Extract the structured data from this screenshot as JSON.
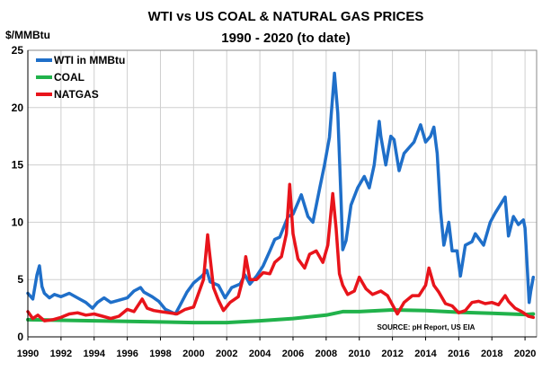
{
  "chart_data": {
    "type": "line",
    "title": "WTI vs US COAL & NATURAL GAS PRICES",
    "subtitle": "1990 - 2020 (to date)",
    "ylabel": "$/MMBtu",
    "xlabel": "",
    "ylim": [
      0,
      25
    ],
    "xlim": [
      1990,
      2020.7
    ],
    "yticks": [
      "0",
      "5",
      "10",
      "15",
      "20",
      "25"
    ],
    "xticks": [
      "1990",
      "1992",
      "1994",
      "1996",
      "1998",
      "2000",
      "2002",
      "2004",
      "2006",
      "2008",
      "2010",
      "2012",
      "2014",
      "2016",
      "2018",
      "2020"
    ],
    "grid": true,
    "legend_position": "top-left",
    "source": "SOURCE:  pH Report, US EIA",
    "series": [
      {
        "name": "WTI in MMBtu",
        "color": "#1f6fc9",
        "x": [
          1990.0,
          1990.3,
          1990.55,
          1990.7,
          1990.85,
          1991.0,
          1991.3,
          1991.6,
          1992.0,
          1992.5,
          1993.0,
          1993.5,
          1993.9,
          1994.2,
          1994.6,
          1995.0,
          1995.5,
          1996.0,
          1996.4,
          1996.8,
          1997.0,
          1997.5,
          1997.9,
          1998.3,
          1998.9,
          1999.2,
          1999.6,
          2000.0,
          2000.5,
          2000.8,
          2001.0,
          2001.5,
          2001.9,
          2002.3,
          2002.8,
          2003.1,
          2003.4,
          2003.8,
          2004.2,
          2004.6,
          2004.9,
          2005.2,
          2005.7,
          2006.0,
          2006.5,
          2006.9,
          2007.2,
          2007.6,
          2007.9,
          2008.2,
          2008.5,
          2008.7,
          2008.9,
          2009.0,
          2009.2,
          2009.5,
          2009.9,
          2010.3,
          2010.6,
          2010.9,
          2011.2,
          2011.3,
          2011.6,
          2011.9,
          2012.1,
          2012.4,
          2012.7,
          2013.0,
          2013.3,
          2013.7,
          2014.0,
          2014.3,
          2014.5,
          2014.7,
          2014.9,
          2015.1,
          2015.4,
          2015.6,
          2015.9,
          2016.1,
          2016.4,
          2016.8,
          2017.0,
          2017.5,
          2017.9,
          2018.2,
          2018.5,
          2018.8,
          2019.0,
          2019.3,
          2019.6,
          2019.9,
          2020.0,
          2020.1,
          2020.25,
          2020.35,
          2020.5
        ],
        "values": [
          3.8,
          3.3,
          5.4,
          6.2,
          4.4,
          3.8,
          3.4,
          3.7,
          3.5,
          3.8,
          3.4,
          3.0,
          2.5,
          3.0,
          3.4,
          3.0,
          3.2,
          3.4,
          4.0,
          4.3,
          3.9,
          3.5,
          3.1,
          2.4,
          2.0,
          2.8,
          3.9,
          4.7,
          5.3,
          5.8,
          4.8,
          4.5,
          3.4,
          4.3,
          4.6,
          5.4,
          4.6,
          5.3,
          6.2,
          7.5,
          8.5,
          8.7,
          10.5,
          10.7,
          12.4,
          10.5,
          10.0,
          12.9,
          15.0,
          17.4,
          23.0,
          19.5,
          12.0,
          7.6,
          8.4,
          11.5,
          13.0,
          14.0,
          13.0,
          15.0,
          18.8,
          17.5,
          15.0,
          17.5,
          17.2,
          14.5,
          16.0,
          16.5,
          17.0,
          18.5,
          17.0,
          17.5,
          18.3,
          16.0,
          11.0,
          8.0,
          10.0,
          7.5,
          7.5,
          5.3,
          8.0,
          8.3,
          9.0,
          8.0,
          10.0,
          10.8,
          11.5,
          12.2,
          8.8,
          10.5,
          9.8,
          10.2,
          9.5,
          7.0,
          3.0,
          4.0,
          5.2
        ]
      },
      {
        "name": "COAL",
        "color": "#21b24b",
        "x": [
          1990,
          1992,
          1994,
          1996,
          1998,
          2000,
          2002,
          2004,
          2006,
          2008,
          2009,
          2010,
          2012,
          2014,
          2016,
          2018,
          2020,
          2020.5
        ],
        "values": [
          1.5,
          1.45,
          1.4,
          1.35,
          1.3,
          1.25,
          1.25,
          1.4,
          1.6,
          1.9,
          2.2,
          2.2,
          2.35,
          2.3,
          2.15,
          2.05,
          1.95,
          2.0
        ]
      },
      {
        "name": "NATGAS",
        "color": "#e8141b",
        "x": [
          1990.0,
          1990.3,
          1990.6,
          1991.0,
          1991.5,
          1992.0,
          1992.5,
          1993.0,
          1993.5,
          1994.0,
          1994.5,
          1995.0,
          1995.5,
          1996.0,
          1996.4,
          1996.9,
          1997.2,
          1997.6,
          1998.0,
          1998.5,
          1999.0,
          1999.5,
          2000.0,
          2000.3,
          2000.6,
          2000.85,
          2000.95,
          2001.2,
          2001.5,
          2001.8,
          2002.2,
          2002.7,
          2003.0,
          2003.15,
          2003.4,
          2003.8,
          2004.2,
          2004.6,
          2004.9,
          2005.3,
          2005.6,
          2005.8,
          2006.0,
          2006.3,
          2006.7,
          2007.0,
          2007.4,
          2007.8,
          2008.1,
          2008.4,
          2008.6,
          2008.8,
          2009.0,
          2009.3,
          2009.7,
          2010.0,
          2010.4,
          2010.8,
          2011.3,
          2011.7,
          2012.0,
          2012.3,
          2012.7,
          2013.2,
          2013.6,
          2014.0,
          2014.2,
          2014.5,
          2014.8,
          2015.2,
          2015.6,
          2016.0,
          2016.4,
          2016.8,
          2017.2,
          2017.6,
          2018.0,
          2018.4,
          2018.8,
          2019.0,
          2019.4,
          2019.8,
          2020.2,
          2020.5
        ],
        "values": [
          2.2,
          1.6,
          1.9,
          1.4,
          1.5,
          1.7,
          2.0,
          2.1,
          1.9,
          2.0,
          1.8,
          1.6,
          1.8,
          2.4,
          2.2,
          3.3,
          2.5,
          2.3,
          2.2,
          2.1,
          2.0,
          2.4,
          2.6,
          3.8,
          5.0,
          8.9,
          7.5,
          4.3,
          3.2,
          2.3,
          3.0,
          3.5,
          5.2,
          7.0,
          5.0,
          5.0,
          5.6,
          5.5,
          6.5,
          7.0,
          9.0,
          13.3,
          9.0,
          6.8,
          6.0,
          7.2,
          7.5,
          6.5,
          8.0,
          12.5,
          9.5,
          5.5,
          4.5,
          3.7,
          4.0,
          5.2,
          4.2,
          3.7,
          4.0,
          3.6,
          2.8,
          2.0,
          3.0,
          3.6,
          3.6,
          4.5,
          6.0,
          4.5,
          3.9,
          2.9,
          2.7,
          2.1,
          2.3,
          3.0,
          3.1,
          2.9,
          3.0,
          2.8,
          3.6,
          3.1,
          2.5,
          2.2,
          1.8,
          1.7
        ]
      }
    ]
  }
}
